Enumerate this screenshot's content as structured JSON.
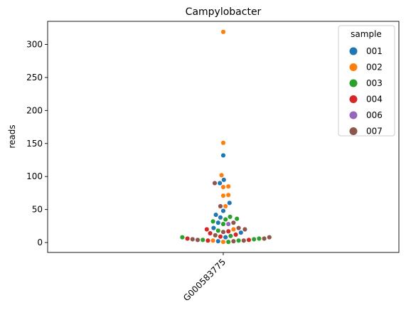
{
  "chart_data": {
    "type": "scatter",
    "subtype": "swarm",
    "title": "Campylobacter",
    "xlabel": "",
    "ylabel": "reads",
    "categories": [
      "G000583775"
    ],
    "ylim": [
      -15,
      335
    ],
    "yticks": [
      0,
      50,
      100,
      150,
      200,
      250,
      300
    ],
    "grid": false,
    "legend": {
      "title": "sample",
      "placement": "top-right"
    },
    "series": [
      {
        "name": "001",
        "color": "#1f77b4",
        "values": [
          132,
          95,
          90,
          60,
          48,
          42,
          38,
          30,
          22,
          15,
          8,
          2
        ]
      },
      {
        "name": "002",
        "color": "#ff7f0e",
        "values": [
          319,
          151,
          102,
          85,
          84,
          72,
          71,
          55,
          20,
          3,
          1
        ]
      },
      {
        "name": "003",
        "color": "#2ca02c",
        "values": [
          39,
          36,
          35,
          32,
          28,
          18,
          10,
          8,
          6,
          5,
          4,
          3,
          1
        ]
      },
      {
        "name": "004",
        "color": "#d62728",
        "values": [
          20,
          17,
          14,
          12,
          9,
          6,
          4,
          3
        ]
      },
      {
        "name": "006",
        "color": "#9467bd",
        "values": [
          28
        ]
      },
      {
        "name": "007",
        "color": "#8c564b",
        "values": [
          90,
          55,
          30,
          22,
          20,
          16,
          11,
          8,
          6,
          5,
          4,
          3,
          2
        ]
      }
    ]
  }
}
